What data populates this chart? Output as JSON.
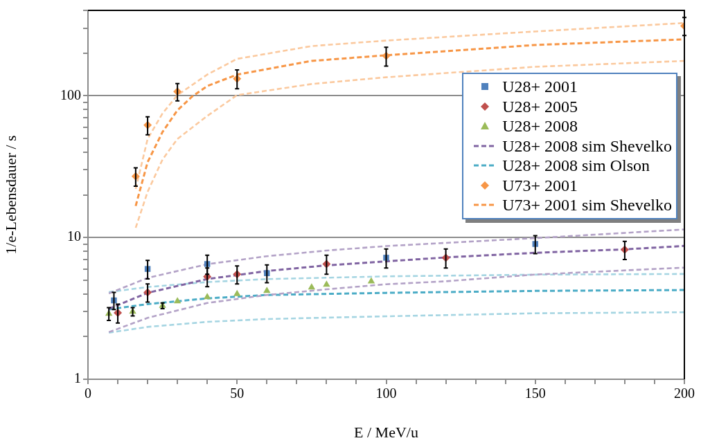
{
  "chart_data": {
    "type": "scatter",
    "xlabel": "E / MeV/u",
    "ylabel": "1/e-Lebensdauer / s",
    "log": "y",
    "grid": "y",
    "legend": "top right",
    "xlim": [
      0,
      200
    ],
    "xticks": [
      0,
      {
        "value": 10,
        "label": null
      },
      {
        "value": 20,
        "label": null
      },
      {
        "value": 30,
        "label": null
      },
      {
        "value": 40,
        "label": null
      },
      50,
      {
        "value": 60,
        "label": null
      },
      {
        "value": 70,
        "label": null
      },
      {
        "value": 80,
        "label": null
      },
      {
        "value": 90,
        "label": null
      },
      100,
      {
        "value": 110,
        "label": null
      },
      {
        "value": 120,
        "label": null
      },
      {
        "value": 130,
        "label": null
      },
      {
        "value": 140,
        "label": null
      },
      150,
      {
        "value": 160,
        "label": null
      },
      {
        "value": 170,
        "label": null
      },
      {
        "value": 180,
        "label": null
      },
      {
        "value": 190,
        "label": null
      },
      200
    ],
    "ylim": [
      1,
      400
    ],
    "yticks": [
      1,
      {
        "value": 2,
        "label": null
      },
      {
        "value": 3,
        "label": null
      },
      {
        "value": 4,
        "label": null
      },
      {
        "value": 5,
        "label": null
      },
      {
        "value": 6,
        "label": null
      },
      {
        "value": 7,
        "label": null
      },
      {
        "value": 8,
        "label": null
      },
      {
        "value": 9,
        "label": null
      },
      10,
      {
        "value": 20,
        "label": null
      },
      {
        "value": 30,
        "label": null
      },
      {
        "value": 40,
        "label": null
      },
      {
        "value": 50,
        "label": null
      },
      {
        "value": 60,
        "label": null
      },
      {
        "value": 70,
        "label": null
      },
      {
        "value": 80,
        "label": null
      },
      {
        "value": 90,
        "label": null
      },
      100,
      {
        "value": 200,
        "label": null
      },
      {
        "value": 300,
        "label": null
      },
      {
        "value": 400,
        "label": null
      }
    ],
    "series": [
      {
        "name": "U28+ 2001",
        "type": "scatter",
        "marker": "square",
        "color": "#4f81bd",
        "x": [
          8.7,
          20,
          40,
          60,
          100,
          150
        ],
        "values": [
          3.6,
          6.0,
          6.5,
          5.6,
          7.2,
          9.0
        ],
        "errors": [
          0.5,
          0.9,
          1.0,
          0.8,
          1.1,
          1.3
        ]
      },
      {
        "name": "U28+ 2005",
        "type": "scatter",
        "marker": "diamond",
        "color": "#c0504d",
        "x": [
          10,
          20,
          40,
          50,
          80,
          120,
          180
        ],
        "values": [
          2.94,
          4.1,
          5.3,
          5.5,
          6.5,
          7.2,
          8.2
        ],
        "errors": [
          0.45,
          0.6,
          0.8,
          0.8,
          1.0,
          1.1,
          1.2
        ]
      },
      {
        "name": "U28+ 2008",
        "type": "scatter",
        "marker": "triangle",
        "color": "#9bbb59",
        "x": [
          7,
          15,
          25,
          30,
          40,
          50,
          60,
          75,
          80,
          95
        ],
        "values": [
          2.9,
          3.0,
          3.3,
          3.55,
          3.8,
          4.0,
          4.2,
          4.45,
          4.65,
          4.9
        ],
        "errors": [
          0.3,
          0.2,
          0.15,
          null,
          null,
          null,
          null,
          null,
          null,
          null
        ]
      },
      {
        "name": "U28+ 2008 sim Shevelko",
        "type": "line",
        "marker": "none",
        "line_style": "dashed",
        "color": "#8064a2",
        "x": [
          7,
          20,
          40,
          60,
          80,
          100,
          120,
          150,
          180,
          200
        ],
        "values": [
          3.14,
          4.07,
          5.09,
          5.8,
          6.36,
          6.78,
          7.24,
          7.8,
          8.25,
          8.72
        ]
      },
      {
        "type": "line",
        "marker": "none",
        "line_style": "dashed",
        "color": "#b3a2c7",
        "x": [
          7,
          20,
          40,
          60,
          80,
          100,
          150,
          200
        ],
        "values": [
          4.03,
          5.19,
          6.48,
          7.38,
          8.09,
          8.7,
          9.9,
          11.4
        ]
      },
      {
        "type": "line",
        "marker": "none",
        "line_style": "dashed",
        "color": "#b3a2c7",
        "x": [
          7,
          20,
          40,
          60,
          80,
          100,
          120,
          150,
          200
        ],
        "values": [
          2.15,
          2.71,
          3.45,
          3.93,
          4.31,
          4.68,
          4.91,
          5.48,
          6.13
        ]
      },
      {
        "name": "U28+ 2008 sim Olson",
        "type": "line",
        "marker": "none",
        "line_style": "dashed",
        "color": "#4bacc6",
        "x": [
          7,
          20,
          40,
          60,
          100,
          150,
          200
        ],
        "values": [
          3.11,
          3.39,
          3.72,
          3.93,
          4.07,
          4.2,
          4.26
        ]
      },
      {
        "type": "line",
        "marker": "none",
        "line_style": "dashed",
        "color": "#a5d5e2",
        "x": [
          7,
          20,
          40,
          60,
          100,
          150,
          200
        ],
        "values": [
          4.12,
          4.47,
          4.85,
          5.09,
          5.32,
          5.47,
          5.53
        ]
      },
      {
        "type": "line",
        "marker": "none",
        "line_style": "dashed",
        "color": "#a5d5e2",
        "x": [
          7,
          20,
          40,
          60,
          100,
          150,
          200
        ],
        "values": [
          2.13,
          2.34,
          2.54,
          2.66,
          2.78,
          2.92,
          2.97
        ]
      },
      {
        "name": "U73+ 2001",
        "type": "scatter",
        "marker": "diamond",
        "color": "#f79646",
        "x": [
          16,
          20,
          30,
          50,
          100,
          200
        ],
        "values": [
          27,
          62,
          107,
          132,
          191,
          311
        ],
        "errors": [
          4,
          9,
          15,
          20,
          29,
          45
        ]
      },
      {
        "name": "U73+ 2001 sim Shevelko",
        "type": "line",
        "marker": "none",
        "line_style": "dashed",
        "color": "#f79646",
        "x": [
          16,
          20,
          25,
          30,
          35,
          40,
          50,
          75,
          100,
          150,
          200
        ],
        "values": [
          16.7,
          34,
          55.5,
          79,
          99,
          117,
          141,
          176,
          193,
          228,
          250
        ]
      },
      {
        "type": "line",
        "marker": "none",
        "line_style": "dashed",
        "color": "#fbc99e",
        "x": [
          16,
          20,
          25,
          30,
          40,
          50,
          75,
          100,
          150,
          200
        ],
        "values": [
          22,
          49.6,
          75,
          101,
          141,
          182,
          224,
          245,
          284,
          326
        ]
      },
      {
        "type": "line",
        "marker": "none",
        "line_style": "dashed",
        "color": "#fbc99e",
        "x": [
          16,
          20,
          25,
          30,
          40,
          50,
          75,
          100,
          150,
          200
        ],
        "values": [
          11.7,
          21,
          35.5,
          49.6,
          72,
          101,
          121,
          135,
          160,
          176
        ]
      }
    ]
  }
}
